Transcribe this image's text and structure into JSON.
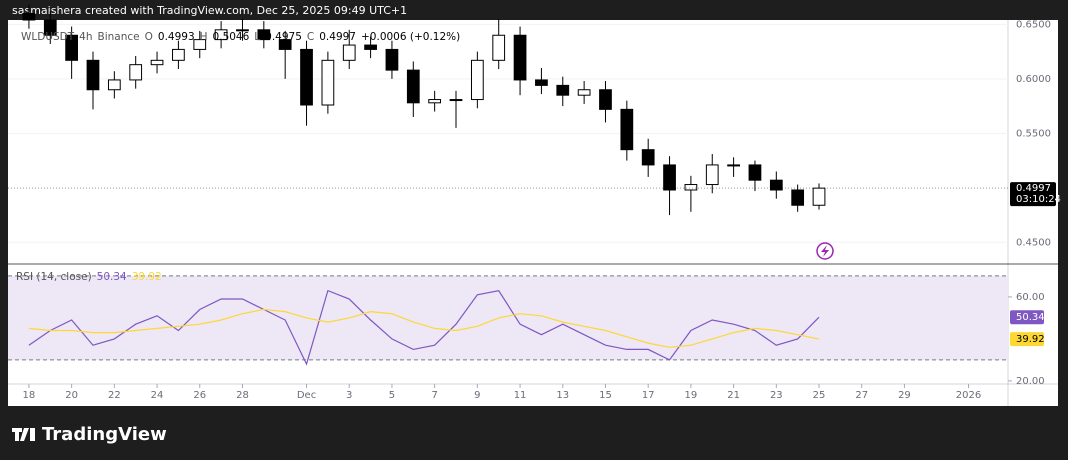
{
  "header": {
    "credit": "sasmaishera created with TradingView.com, Dec 25, 2025 09:49 UTC+1"
  },
  "footer": {
    "brand": "TradingView"
  },
  "chart_data": [
    {
      "type": "candlestick",
      "symbol": "WLDUSDT",
      "interval": "4h",
      "exchange": "Binance",
      "legend_items": [
        {
          "key": "O",
          "value": 0.4993
        },
        {
          "key": "H",
          "value": 0.5046
        },
        {
          "key": "L",
          "value": 0.4975
        },
        {
          "key": "C",
          "value": 0.4997
        }
      ],
      "change": "+0.0006 (+0.12%)",
      "last_price": 0.4997,
      "countdown": "03:10:24",
      "x": [
        0,
        1,
        2,
        3,
        4,
        5,
        6,
        7,
        8,
        9,
        10,
        11,
        12,
        13,
        14,
        15,
        16,
        17,
        18,
        19,
        20,
        21,
        22,
        23,
        24,
        25,
        26,
        27,
        28,
        29,
        30,
        31,
        32,
        33,
        34,
        35,
        36,
        37
      ],
      "open": [
        0.66,
        0.654,
        0.64,
        0.617,
        0.59,
        0.599,
        0.613,
        0.617,
        0.627,
        0.636,
        0.645,
        0.645,
        0.636,
        0.627,
        0.576,
        0.617,
        0.631,
        0.627,
        0.608,
        0.578,
        0.581,
        0.581,
        0.617,
        0.64,
        0.599,
        0.594,
        0.585,
        0.59,
        0.572,
        0.535,
        0.521,
        0.498,
        0.503,
        0.521,
        0.521,
        0.507,
        0.498,
        0.484
      ],
      "high": [
        0.668,
        0.662,
        0.648,
        0.625,
        0.607,
        0.621,
        0.625,
        0.635,
        0.644,
        0.653,
        0.655,
        0.653,
        0.644,
        0.635,
        0.625,
        0.645,
        0.639,
        0.635,
        0.616,
        0.589,
        0.589,
        0.625,
        0.655,
        0.648,
        0.61,
        0.602,
        0.598,
        0.598,
        0.58,
        0.545,
        0.529,
        0.511,
        0.531,
        0.528,
        0.525,
        0.515,
        0.503,
        0.504
      ],
      "low": [
        0.646,
        0.632,
        0.6,
        0.572,
        0.582,
        0.591,
        0.605,
        0.609,
        0.619,
        0.628,
        0.635,
        0.628,
        0.6,
        0.557,
        0.568,
        0.609,
        0.619,
        0.6,
        0.565,
        0.57,
        0.555,
        0.573,
        0.609,
        0.585,
        0.586,
        0.575,
        0.577,
        0.56,
        0.525,
        0.51,
        0.475,
        0.478,
        0.495,
        0.51,
        0.497,
        0.49,
        0.478,
        0.48
      ],
      "close": [
        0.654,
        0.64,
        0.617,
        0.59,
        0.599,
        0.613,
        0.617,
        0.627,
        0.636,
        0.645,
        0.645,
        0.636,
        0.627,
        0.576,
        0.617,
        0.631,
        0.627,
        0.608,
        0.578,
        0.581,
        0.581,
        0.617,
        0.64,
        0.599,
        0.594,
        0.585,
        0.59,
        0.572,
        0.535,
        0.521,
        0.498,
        0.503,
        0.521,
        0.521,
        0.507,
        0.498,
        0.484,
        0.4997
      ],
      "up_color": "#ffffff",
      "down_color": "#000000",
      "xlim": [
        -0.98,
        45.85
      ],
      "xticks": [
        {
          "value": 0,
          "label": "18"
        },
        {
          "value": 2,
          "label": "20"
        },
        {
          "value": 4,
          "label": "22"
        },
        {
          "value": 6,
          "label": "24"
        },
        {
          "value": 8,
          "label": "26"
        },
        {
          "value": 10,
          "label": "28"
        },
        {
          "value": 13,
          "label": "Dec"
        },
        {
          "value": 15,
          "label": "3"
        },
        {
          "value": 17,
          "label": "5"
        },
        {
          "value": 19,
          "label": "7"
        },
        {
          "value": 21,
          "label": "9"
        },
        {
          "value": 23,
          "label": "11"
        },
        {
          "value": 25,
          "label": "13"
        },
        {
          "value": 27,
          "label": "15"
        },
        {
          "value": 29,
          "label": "17"
        },
        {
          "value": 31,
          "label": "19"
        },
        {
          "value": 33,
          "label": "21"
        },
        {
          "value": 35,
          "label": "23"
        },
        {
          "value": 37,
          "label": "25"
        },
        {
          "value": 39,
          "label": "27"
        },
        {
          "value": 41,
          "label": "29"
        },
        {
          "value": 44,
          "label": "2026"
        }
      ],
      "ylim": [
        0.431,
        0.654
      ],
      "yticks": [
        {
          "value": 0.45,
          "label": "0.4500"
        },
        {
          "value": 0.55,
          "label": "0.5500"
        },
        {
          "value": 0.6,
          "label": "0.6000"
        },
        {
          "value": 0.65,
          "label": "0.6500"
        }
      ]
    },
    {
      "type": "line",
      "title": "RSI (14, close)",
      "x": [
        0,
        1,
        2,
        3,
        4,
        5,
        6,
        7,
        8,
        9,
        10,
        11,
        12,
        13,
        14,
        15,
        16,
        17,
        18,
        19,
        20,
        21,
        22,
        23,
        24,
        25,
        26,
        27,
        28,
        29,
        30,
        31,
        32,
        33,
        34,
        35,
        36,
        37
      ],
      "series": [
        {
          "name": 50.34,
          "color": "#7e57c2",
          "values": [
            37,
            44,
            49,
            37,
            40,
            47,
            51,
            44,
            54,
            59,
            59,
            54,
            49,
            28,
            63,
            59,
            49,
            40,
            35,
            37,
            47,
            61,
            63,
            47,
            42,
            47,
            42,
            37,
            35,
            35,
            30,
            44,
            49,
            47,
            44,
            37,
            40,
            50.34
          ]
        },
        {
          "name": 39.92,
          "color": "#fdd835",
          "values": [
            45,
            44,
            44,
            43,
            43,
            44,
            45,
            46,
            47,
            49,
            52,
            54,
            53,
            50,
            48,
            50,
            53,
            52,
            48,
            45,
            44,
            46,
            50,
            52,
            51,
            48,
            46,
            44,
            41,
            38,
            36,
            37,
            40,
            43,
            45,
            44,
            42,
            39.92
          ]
        }
      ],
      "bands": [
        30,
        70
      ],
      "band_color": "#ede7f6",
      "xlim": [
        -0.98,
        45.85
      ],
      "ylim": [
        19.0,
        75.2
      ],
      "yticks": [
        {
          "value": 20,
          "label": "20.00"
        },
        {
          "value": 60,
          "label": "60.00"
        }
      ]
    }
  ]
}
